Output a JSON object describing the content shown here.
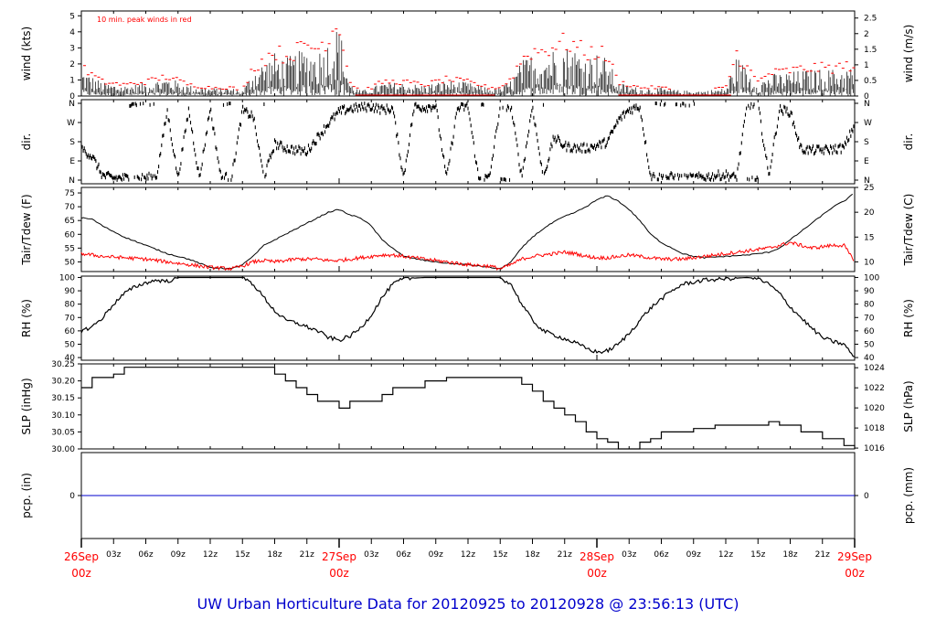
{
  "footer_title": "UW Urban Horticulture Data for 20120925  to  20120928 @ 23:56:13  (UTC)",
  "colors": {
    "accent": "#ff0000",
    "footer": "#0000cc",
    "precip_line": "#0000cc",
    "series": "#000000"
  },
  "chart_data": [
    {
      "type": "line",
      "annotation": "10 min. peak winds in red",
      "ylabel_left": "wind (kts)",
      "ylabel_right": "wind (m/s)",
      "ylim": [
        0,
        5.3
      ],
      "yticks_left": [
        0,
        1,
        2,
        3,
        4,
        5
      ],
      "yticks_right": [
        "0",
        "0.5",
        "1",
        "1.5",
        "2",
        "2.5"
      ],
      "xlim_hours": [
        0,
        72
      ],
      "envelope": {
        "hours": [
          0,
          2,
          4,
          6,
          8,
          10,
          12,
          14,
          15,
          16,
          17,
          18,
          19,
          20,
          21,
          22,
          23,
          24,
          25,
          26,
          27,
          28,
          30,
          32,
          34,
          36,
          38,
          39,
          40,
          41,
          42,
          43,
          44,
          45,
          46,
          47,
          48,
          49,
          50,
          52,
          54,
          56,
          58,
          60,
          61,
          62,
          63,
          64,
          66,
          68,
          70,
          72
        ],
        "mean_kts": [
          1.0,
          0.5,
          0.4,
          0.5,
          0.7,
          0.4,
          0.3,
          0.3,
          0.2,
          1.0,
          1.3,
          1.6,
          1.4,
          1.6,
          1.8,
          1.7,
          2.1,
          2.7,
          0.5,
          0.2,
          0.3,
          0.5,
          0.5,
          0.4,
          0.6,
          0.5,
          0.3,
          0.3,
          0.6,
          1.3,
          1.6,
          1.6,
          1.8,
          1.9,
          1.8,
          1.5,
          1.6,
          1.4,
          0.5,
          0.3,
          0.3,
          0.2,
          0.2,
          0.3,
          1.5,
          1.0,
          0.5,
          0.8,
          0.9,
          1.0,
          1.0,
          1.1
        ]
      }
    },
    {
      "type": "scatter",
      "ylabel_left": "dir.",
      "ylabel_right": "dir.",
      "yticks_left": [
        "N",
        "E",
        "S",
        "W",
        "N"
      ],
      "yticks_right": [
        "N",
        "E",
        "S",
        "W",
        "N"
      ],
      "ylim_deg": [
        0,
        360
      ],
      "xlim_hours": [
        0,
        72
      ],
      "direction_deg": {
        "hours": [
          0,
          1,
          2,
          3,
          4,
          5,
          6,
          7,
          8,
          9,
          10,
          11,
          12,
          13,
          14,
          15,
          16,
          17,
          18,
          19,
          20,
          21,
          22,
          23,
          24,
          25,
          26,
          27,
          28,
          29,
          30,
          31,
          32,
          33,
          34,
          35,
          36,
          37,
          38,
          39,
          40,
          41,
          42,
          43,
          44,
          45,
          46,
          47,
          48,
          49,
          50,
          51,
          52,
          53,
          54,
          55,
          56,
          57,
          58,
          59,
          60,
          61,
          62,
          63,
          64,
          65,
          66,
          67,
          68,
          69,
          70,
          71,
          72
        ],
        "values": [
          150,
          110,
          20,
          10,
          10,
          5,
          10,
          15,
          325,
          10,
          330,
          5,
          340,
          10,
          15,
          325,
          300,
          10,
          170,
          150,
          140,
          135,
          200,
          265,
          320,
          335,
          340,
          345,
          330,
          335,
          10,
          345,
          340,
          350,
          5,
          335,
          345,
          5,
          10,
          350,
          345,
          15,
          350,
          5,
          200,
          160,
          150,
          150,
          160,
          180,
          280,
          330,
          345,
          20,
          10,
          15,
          5,
          10,
          15,
          20,
          25,
          10,
          355,
          355,
          20,
          330,
          320,
          145,
          140,
          140,
          145,
          150,
          260
        ]
      }
    },
    {
      "type": "line",
      "ylabel_left": "Tair/Tdew (F)",
      "ylabel_right": "Tair/Tdew (C)",
      "yticks_left": [
        50,
        55,
        60,
        65,
        70,
        75
      ],
      "yticks_right": [
        10,
        15,
        20,
        25
      ],
      "ylim_f": [
        46.5,
        77
      ],
      "xlim_hours": [
        0,
        72
      ],
      "series": [
        {
          "name": "Tair",
          "hours": [
            0,
            1,
            2,
            4,
            6,
            8,
            10,
            12,
            14,
            15,
            16,
            17,
            18,
            19,
            20,
            21,
            22,
            23,
            24,
            25,
            26,
            27,
            28,
            29,
            30,
            32,
            34,
            36,
            38,
            39,
            40,
            41,
            42,
            43,
            44,
            45,
            46,
            47,
            48,
            49,
            50,
            51,
            52,
            53,
            54,
            55,
            56,
            57,
            58,
            60,
            62,
            64,
            65,
            66,
            67,
            68,
            69,
            70,
            71,
            72
          ],
          "values": [
            66,
            65.5,
            63,
            59,
            56,
            53,
            51,
            48,
            47.5,
            49,
            52,
            56,
            58,
            60,
            62,
            64,
            66,
            68,
            69,
            67,
            66,
            63,
            58,
            55,
            52,
            50.5,
            49.5,
            49,
            48,
            47.5,
            50,
            55,
            59,
            62,
            64.5,
            66.5,
            68,
            70,
            72.5,
            74,
            72,
            69,
            65,
            60,
            57,
            55,
            53,
            52,
            51.5,
            52,
            52.5,
            53.5,
            55,
            58,
            61,
            64,
            67,
            70,
            72,
            75
          ]
        },
        {
          "name": "Tdew",
          "hours": [
            0,
            1,
            2,
            4,
            6,
            8,
            10,
            12,
            14,
            15,
            16,
            17,
            18,
            19,
            20,
            21,
            22,
            23,
            24,
            25,
            26,
            27,
            28,
            29,
            30,
            32,
            34,
            36,
            38,
            39,
            40,
            41,
            42,
            43,
            44,
            45,
            46,
            47,
            48,
            49,
            50,
            51,
            52,
            53,
            54,
            55,
            56,
            57,
            58,
            60,
            62,
            64,
            65,
            66,
            67,
            68,
            69,
            70,
            71,
            72
          ],
          "values": [
            53,
            52.5,
            52,
            51.5,
            51,
            50,
            49,
            48,
            47.5,
            48.5,
            50,
            50.5,
            50,
            50.5,
            51,
            51,
            51,
            50.5,
            50.5,
            51,
            51.5,
            52,
            52.5,
            52.5,
            52,
            51,
            50,
            49,
            48.5,
            47.5,
            49,
            51,
            52,
            52.5,
            53,
            53.5,
            53,
            52,
            51.5,
            51.5,
            52,
            52.5,
            52,
            51.5,
            51,
            51,
            51,
            51.5,
            52,
            53,
            54,
            55,
            56,
            57,
            56,
            55,
            55.5,
            56,
            56,
            50
          ]
        }
      ]
    },
    {
      "type": "line",
      "ylabel_left": "RH (%)",
      "ylabel_right": "RH (%)",
      "yticks_left": [
        40,
        50,
        60,
        70,
        80,
        90,
        100
      ],
      "yticks_right": [
        40,
        50,
        60,
        70,
        80,
        90,
        100
      ],
      "ylim": [
        38,
        101
      ],
      "xlim_hours": [
        0,
        72
      ],
      "series": [
        {
          "name": "RH",
          "hours": [
            0,
            1,
            2,
            3,
            4,
            5,
            6,
            7,
            8,
            9,
            12,
            14,
            15,
            16,
            17,
            18,
            19,
            20,
            21,
            22,
            23,
            24,
            25,
            26,
            27,
            28,
            29,
            30,
            32,
            34,
            36,
            38,
            39,
            40,
            41,
            42,
            43,
            44,
            45,
            46,
            47,
            48,
            49,
            50,
            51,
            52,
            53,
            54,
            55,
            56,
            58,
            60,
            62,
            63,
            64,
            65,
            66,
            67,
            68,
            69,
            70,
            71,
            72
          ],
          "values": [
            60,
            63,
            70,
            80,
            88,
            93,
            96,
            98,
            97,
            100,
            100,
            100,
            100,
            95,
            85,
            75,
            68,
            66,
            63,
            60,
            55,
            53,
            56,
            62,
            72,
            85,
            95,
            99,
            100,
            100,
            100,
            100,
            100,
            95,
            80,
            68,
            60,
            57,
            54,
            51,
            47,
            44,
            45,
            50,
            58,
            68,
            77,
            84,
            90,
            95,
            98,
            99,
            100,
            99,
            95,
            88,
            78,
            70,
            62,
            55,
            52,
            50,
            40
          ]
        }
      ]
    },
    {
      "type": "line",
      "ylabel_left": "SLP (inHg)",
      "ylabel_right": "SLP (hPa)",
      "yticks_left": [
        "30.00",
        "30.05",
        "30.10",
        "30.15",
        "30.20",
        "30.25"
      ],
      "yticks_right": [
        1016,
        1018,
        1020,
        1022,
        1024
      ],
      "ylim": [
        30.0,
        30.25
      ],
      "xlim_hours": [
        0,
        72
      ],
      "series": [
        {
          "name": "SLP",
          "hours": [
            0,
            1,
            2,
            3,
            4,
            5,
            6,
            7,
            8,
            9,
            10,
            11,
            12,
            13,
            14,
            15,
            16,
            17,
            18,
            19,
            20,
            21,
            22,
            23,
            24,
            25,
            26,
            27,
            28,
            29,
            30,
            31,
            32,
            33,
            34,
            35,
            36,
            37,
            38,
            39,
            40,
            41,
            42,
            43,
            44,
            45,
            46,
            47,
            48,
            49,
            50,
            51,
            52,
            53,
            54,
            55,
            56,
            57,
            58,
            59,
            60,
            61,
            62,
            63,
            64,
            65,
            66,
            67,
            68,
            69,
            70,
            71,
            72
          ],
          "values": [
            30.18,
            30.21,
            30.21,
            30.22,
            30.24,
            30.24,
            30.24,
            30.24,
            30.24,
            30.24,
            30.24,
            30.24,
            30.24,
            30.24,
            30.24,
            30.24,
            30.24,
            30.24,
            30.22,
            30.2,
            30.18,
            30.16,
            30.14,
            30.14,
            30.12,
            30.14,
            30.14,
            30.14,
            30.16,
            30.18,
            30.18,
            30.18,
            30.2,
            30.2,
            30.21,
            30.21,
            30.21,
            30.21,
            30.21,
            30.21,
            30.21,
            30.19,
            30.17,
            30.14,
            30.12,
            30.1,
            30.08,
            30.05,
            30.03,
            30.02,
            30.0,
            30.0,
            30.02,
            30.03,
            30.05,
            30.05,
            30.05,
            30.06,
            30.06,
            30.07,
            30.07,
            30.07,
            30.07,
            30.07,
            30.08,
            30.07,
            30.07,
            30.05,
            30.05,
            30.03,
            30.03,
            30.01,
            30.0
          ]
        }
      ]
    },
    {
      "type": "line",
      "ylabel_left": "pcp. (in)",
      "ylabel_right": "pcp. (mm)",
      "yticks_left": [
        0
      ],
      "yticks_right": [
        0
      ],
      "ylim": [
        -1,
        1
      ],
      "xlim_hours": [
        0,
        72
      ],
      "series": [
        {
          "name": "pcp",
          "hours": [
            0,
            72
          ],
          "values": [
            0,
            0
          ]
        }
      ]
    }
  ],
  "x_axis": {
    "hour_ticks": [
      "03z",
      "06z",
      "09z",
      "12z",
      "15z",
      "18z",
      "21z"
    ],
    "hour_tick_hours": [
      3,
      6,
      9,
      12,
      15,
      18,
      21,
      27,
      30,
      33,
      36,
      39,
      42,
      45,
      51,
      54,
      57,
      60,
      63,
      66,
      69
    ],
    "day_labels": [
      {
        "hours": 0,
        "date": "26Sep",
        "time": "00z"
      },
      {
        "hours": 24,
        "date": "27Sep",
        "time": "00z"
      },
      {
        "hours": 48,
        "date": "28Sep",
        "time": "00z"
      },
      {
        "hours": 72,
        "date": "29Sep",
        "time": "00z"
      }
    ]
  }
}
